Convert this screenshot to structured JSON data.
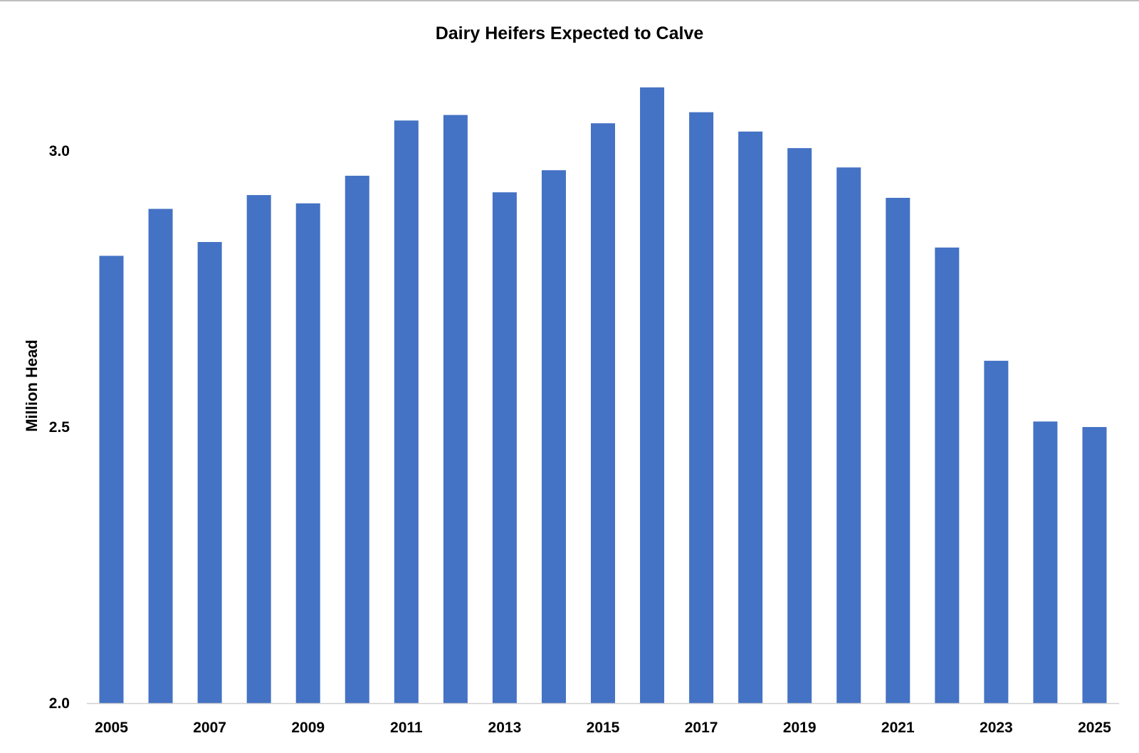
{
  "chart_data": {
    "type": "bar",
    "title": "Dairy Heifers Expected to Calve",
    "xlabel": "",
    "ylabel": "Million Head",
    "ylim": [
      2.0,
      3.0
    ],
    "yticks": [
      "2.0",
      "2.5",
      "3.0"
    ],
    "ytick_values": [
      2.0,
      2.5,
      3.0
    ],
    "grid": false,
    "legend": "none",
    "bar_color": "#4472C4",
    "categories": [
      "2005",
      "2006",
      "2007",
      "2008",
      "2009",
      "2010",
      "2011",
      "2012",
      "2013",
      "2014",
      "2015",
      "2016",
      "2017",
      "2018",
      "2019",
      "2020",
      "2021",
      "2022",
      "2023",
      "2024",
      "2025"
    ],
    "xtick_labels_shown": [
      "2005",
      "2007",
      "2009",
      "2011",
      "2013",
      "2015",
      "2017",
      "2019",
      "2021",
      "2023",
      "2025"
    ],
    "values": [
      2.81,
      2.895,
      2.835,
      2.92,
      2.905,
      2.955,
      3.055,
      3.065,
      2.925,
      2.965,
      3.05,
      3.115,
      3.07,
      3.035,
      3.005,
      2.97,
      2.915,
      2.825,
      2.62,
      2.51,
      2.5
    ]
  }
}
